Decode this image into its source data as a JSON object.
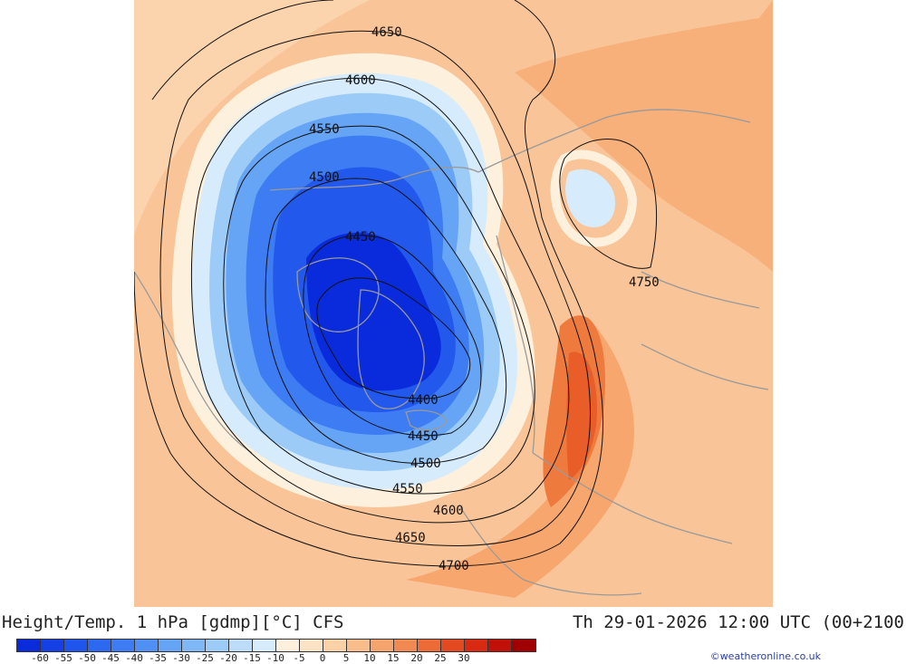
{
  "title_left": "Height/Temp. 1 hPa [gdmp][°C] CFS",
  "title_right": "Th 29-01-2026 12:00 UTC (00+2100",
  "credit": "©weatheronline.co.uk",
  "colorbar": {
    "ticks": [
      "-60",
      "-55",
      "-50",
      "-45",
      "-40",
      "-35",
      "-30",
      "-25",
      "-20",
      "-15",
      "-10",
      "-5",
      "0",
      "5",
      "10",
      "15",
      "20",
      "25",
      "30"
    ],
    "colors": [
      "#0a2bdc",
      "#1440e6",
      "#1f55ec",
      "#2d68f0",
      "#3d7cf2",
      "#5090f4",
      "#66a4f5",
      "#80b8f7",
      "#9ccbf8",
      "#bcdcfa",
      "#d6ebfb",
      "#fdf0dc",
      "#fde3c6",
      "#fbd1a8",
      "#f9bd8b",
      "#f5a46d",
      "#f18a52",
      "#ec6b37",
      "#e44a22",
      "#d82a12",
      "#c01008",
      "#a00000"
    ]
  },
  "contours": [
    {
      "id": "c4400",
      "label": "4400"
    },
    {
      "id": "c4450",
      "label": "4450"
    },
    {
      "id": "c4500",
      "label": "4500"
    },
    {
      "id": "c4550",
      "label": "4550"
    },
    {
      "id": "c4600",
      "label": "4600"
    },
    {
      "id": "c4650",
      "label": "4650"
    },
    {
      "id": "c4700",
      "label": "4700"
    },
    {
      "id": "c4750",
      "label": "4750"
    }
  ]
}
